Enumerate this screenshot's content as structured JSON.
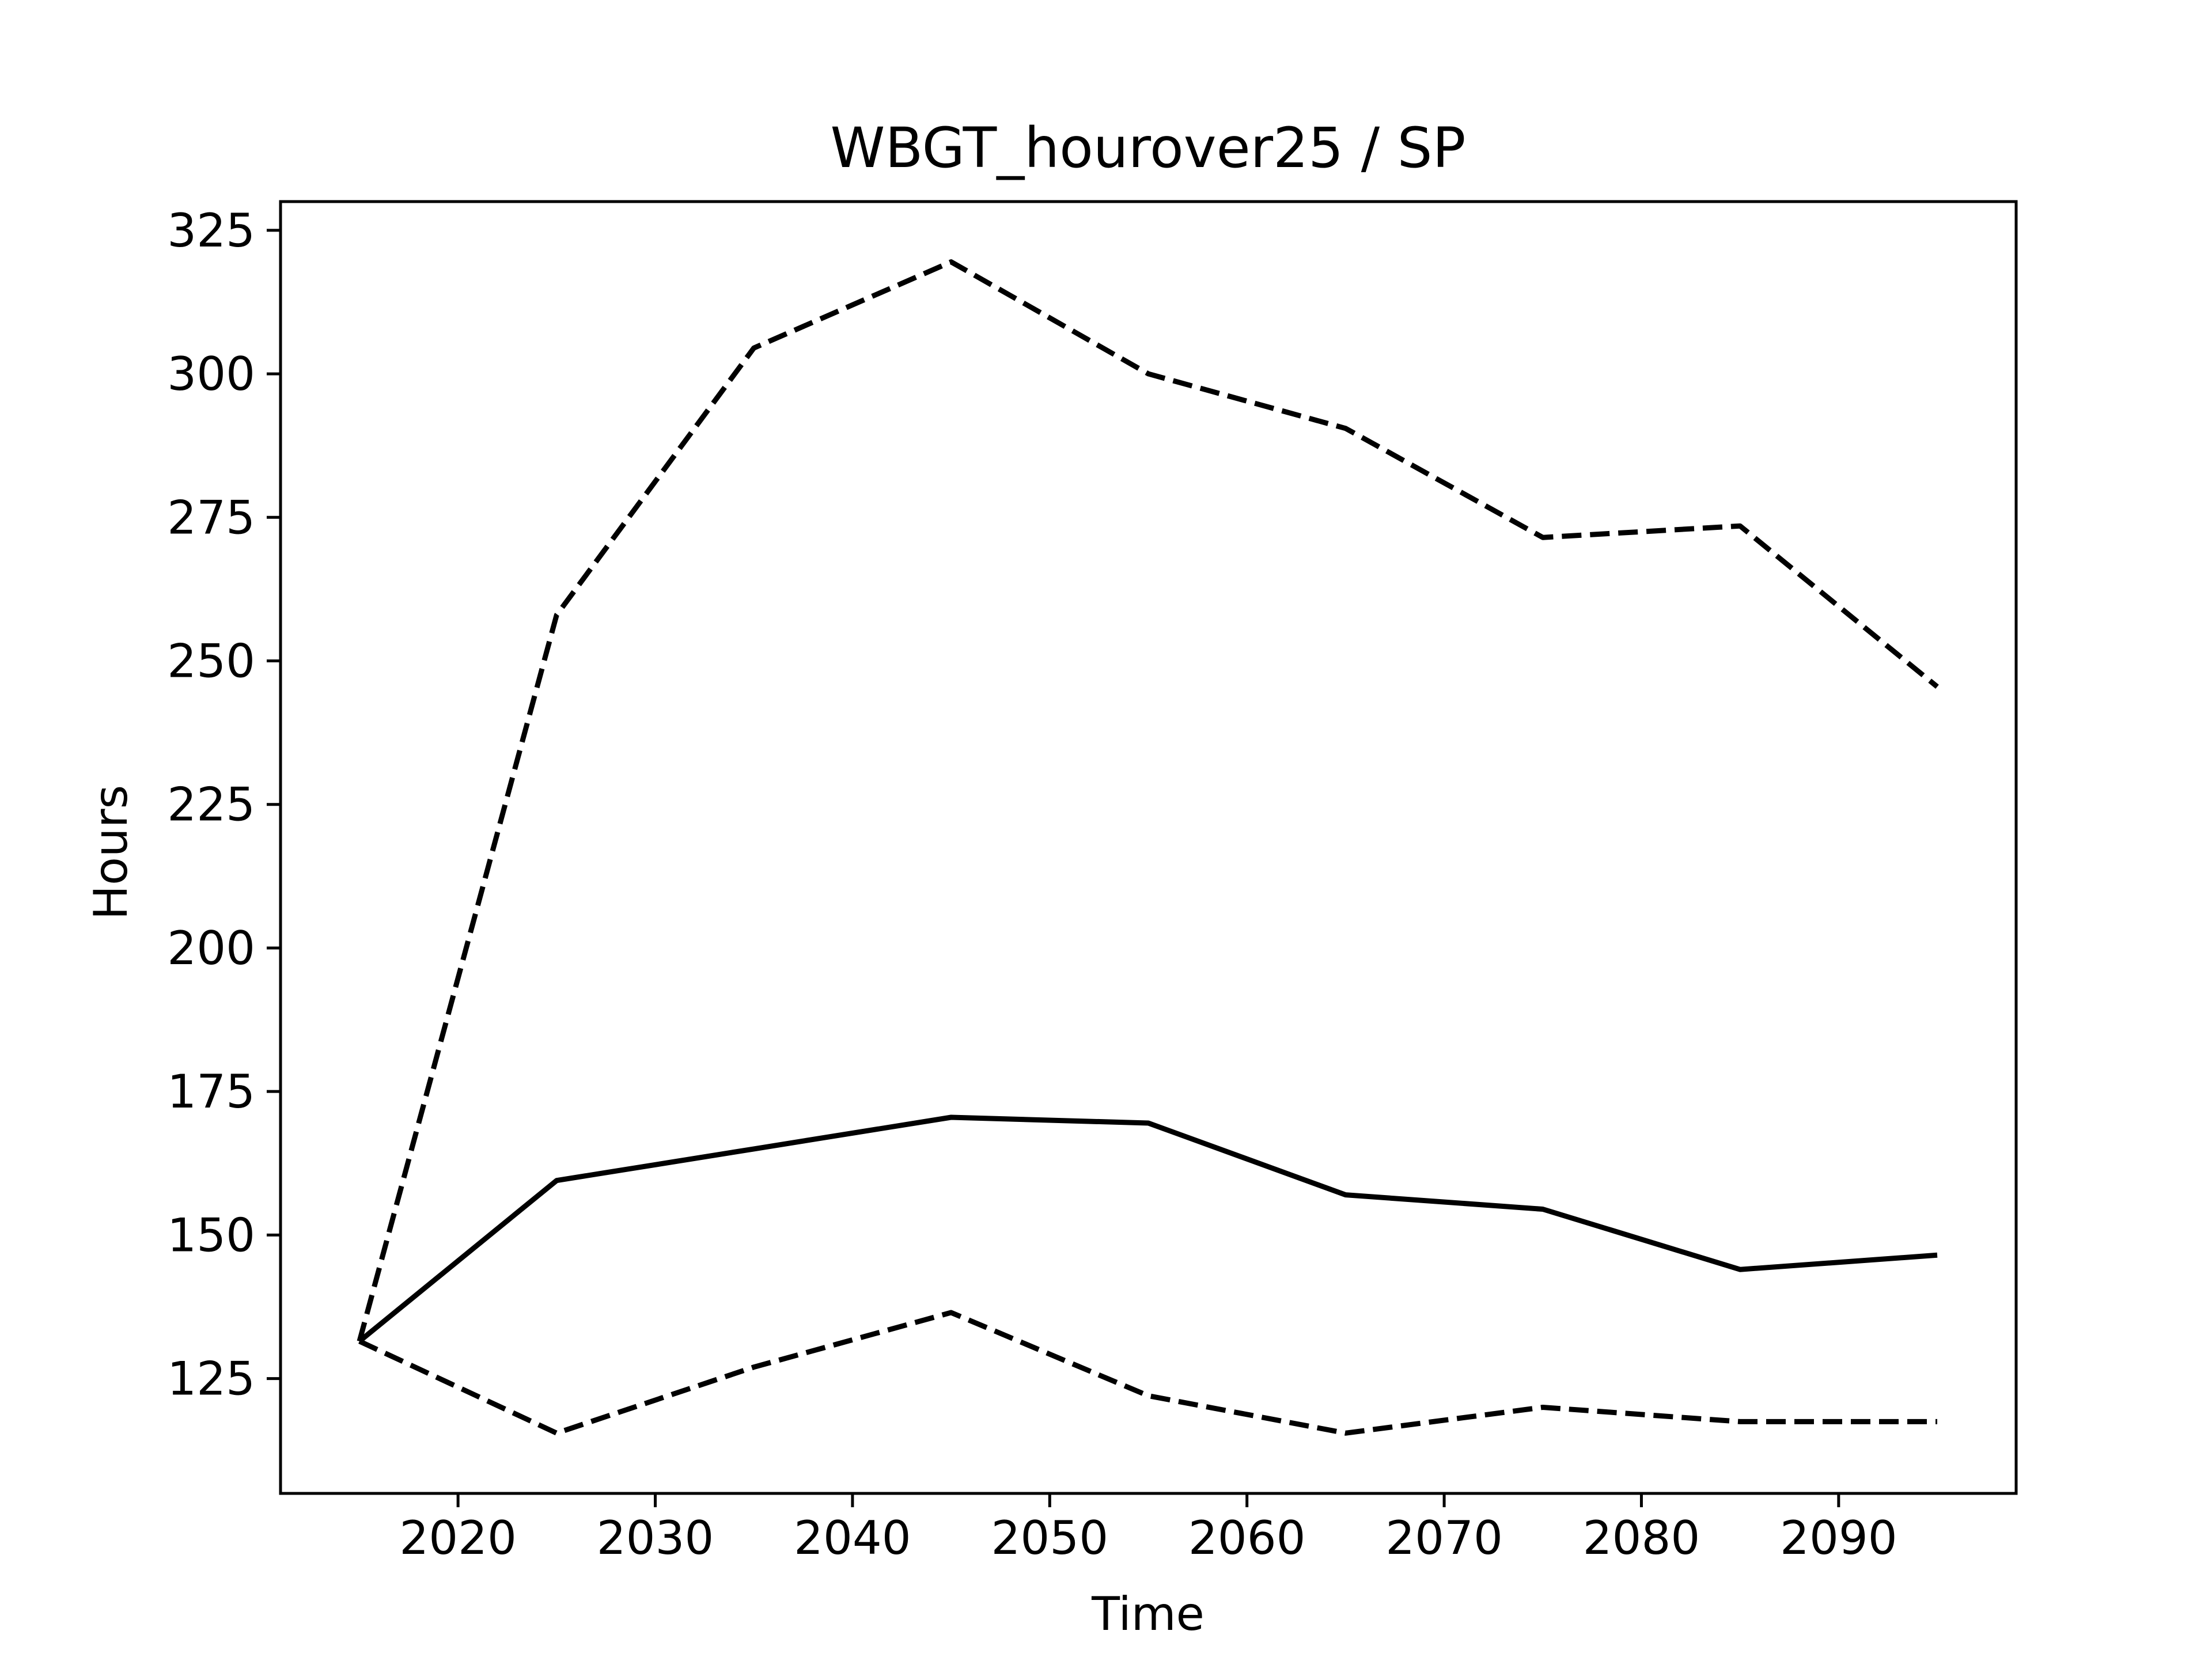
{
  "chart_data": {
    "type": "line",
    "title": "WBGT_hourover25 / SP",
    "xlabel": "Time",
    "ylabel": "Hours",
    "xlim": [
      2011,
      2099
    ],
    "ylim": [
      105,
      330
    ],
    "xticks": [
      2020,
      2030,
      2040,
      2050,
      2060,
      2070,
      2080,
      2090
    ],
    "yticks": [
      125,
      150,
      175,
      200,
      225,
      250,
      275,
      300,
      325
    ],
    "grid": false,
    "legend": "none",
    "x": [
      2015,
      2025,
      2035,
      2045,
      2055,
      2065,
      2075,
      2085,
      2095
    ],
    "series": [
      {
        "style": "solid",
        "color": "#000000",
        "values": [
          131.5,
          159.5,
          165.0,
          170.5,
          169.5,
          157.0,
          154.5,
          144.0,
          146.5
        ]
      },
      {
        "style": "dashed",
        "color": "#000000",
        "values": [
          131.5,
          258.0,
          304.5,
          319.5,
          300.0,
          290.5,
          271.5,
          273.5,
          245.5
        ]
      },
      {
        "style": "dashed",
        "color": "#000000",
        "values": [
          131.5,
          115.5,
          127.0,
          136.5,
          122.0,
          115.5,
          120.0,
          117.5,
          117.5
        ]
      }
    ]
  }
}
